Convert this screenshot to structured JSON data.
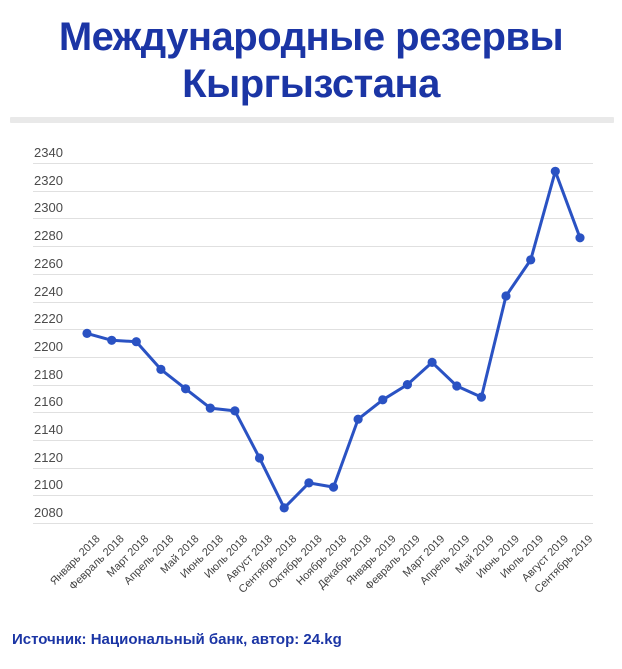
{
  "title": {
    "line1": "Международные резервы",
    "line2": "Кыргызстана"
  },
  "footer": {
    "source_label": "Источник: Национальный банк, автор: 24.kg"
  },
  "colors": {
    "title_text": "#1b35a5",
    "footer_text": "#1b35a5",
    "line": "#2a52c3",
    "point": "#2a52c3",
    "grid": "#e0e0e0",
    "divider": "#e9e9e9",
    "y_axis_text": "#4b4b4b",
    "x_axis_text": "#434343",
    "background": "#ffffff"
  },
  "chart_data": {
    "type": "line",
    "title": "Международные резервы Кыргызстана",
    "xlabel": "",
    "ylabel": "",
    "categories": [
      "Январь 2018",
      "Февраль 2018",
      "Март 2018",
      "Апрель 2018",
      "Май 2018",
      "Июнь 2018",
      "Июль 2018",
      "Август 2018",
      "Сентябрь 2018",
      "Октябрь 2018",
      "Ноябрь 2018",
      "Декабрь 2018",
      "Январь 2019",
      "Февраль 2019",
      "Март 2019",
      "Апрель 2019",
      "Май 2019",
      "Июнь 2019",
      "Июль 2019",
      "Август 2019",
      "Сентябрь 2019"
    ],
    "values": [
      2217,
      2212,
      2211,
      2191,
      2177,
      2163,
      2161,
      2127,
      2091,
      2109,
      2106,
      2155,
      2169,
      2180,
      2196,
      2179,
      2171,
      2244,
      2270,
      2334,
      2286
    ],
    "y_ticks": [
      2340,
      2320,
      2300,
      2280,
      2260,
      2240,
      2220,
      2200,
      2180,
      2160,
      2140,
      2120,
      2100,
      2080
    ],
    "ylim": [
      2080,
      2340
    ],
    "grid": true,
    "legend_position": "none",
    "marker": "circle",
    "source": "Источник: Национальный банк, автор: 24.kg"
  }
}
